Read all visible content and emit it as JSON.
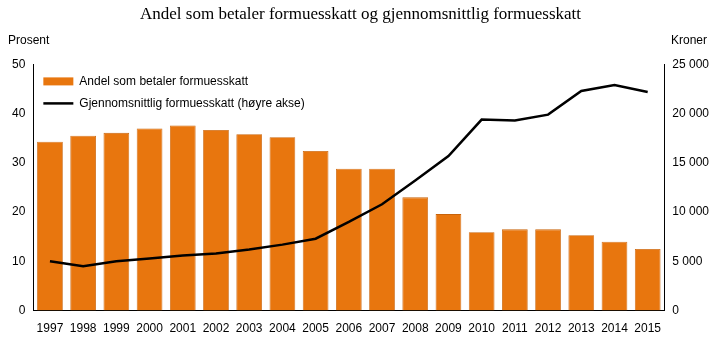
{
  "chart_data": {
    "type": "bar",
    "title": "Andel som betaler formuesskatt og gjennomsnittlig formuesskatt",
    "ylabel": "Prosent",
    "y2label": "Kroner",
    "categories": [
      "1997",
      "1998",
      "1999",
      "2000",
      "2001",
      "2002",
      "2003",
      "2004",
      "2005",
      "2006",
      "2007",
      "2008",
      "2009",
      "2010",
      "2011",
      "2012",
      "2013",
      "2014",
      "2015"
    ],
    "series": [
      {
        "name": "Andel som betaler formuesskatt",
        "type": "bar",
        "color": "#e8760e",
        "values": [
          34.3,
          35.5,
          36.1,
          37.0,
          37.6,
          36.7,
          35.8,
          35.2,
          32.4,
          28.8,
          28.8,
          23.0,
          19.6,
          15.9,
          16.5,
          16.5,
          15.3,
          14.0,
          12.5
        ]
      },
      {
        "name": "Gjennomsnittlig formuesskatt (høyre akse)",
        "type": "line",
        "color": "#000000",
        "axis": "y2",
        "values": [
          5000,
          4500,
          5000,
          5300,
          5600,
          5800,
          6200,
          6700,
          7300,
          9000,
          10800,
          13200,
          15700,
          19400,
          19300,
          19900,
          22300,
          22900,
          22200
        ]
      }
    ],
    "ylim": [
      0,
      50
    ],
    "yticks": [
      0,
      10,
      20,
      30,
      40,
      50
    ],
    "y2lim": [
      0,
      25000
    ],
    "y2ticks": [
      0,
      {
        "value": 5000,
        "label": "5 000"
      },
      {
        "value": 10000,
        "label": "10 000"
      },
      {
        "value": 15000,
        "label": "15 000"
      },
      {
        "value": 20000,
        "label": "20 000"
      },
      {
        "value": 25000,
        "label": "25 000"
      }
    ],
    "grid": false,
    "legend": "upper left"
  }
}
